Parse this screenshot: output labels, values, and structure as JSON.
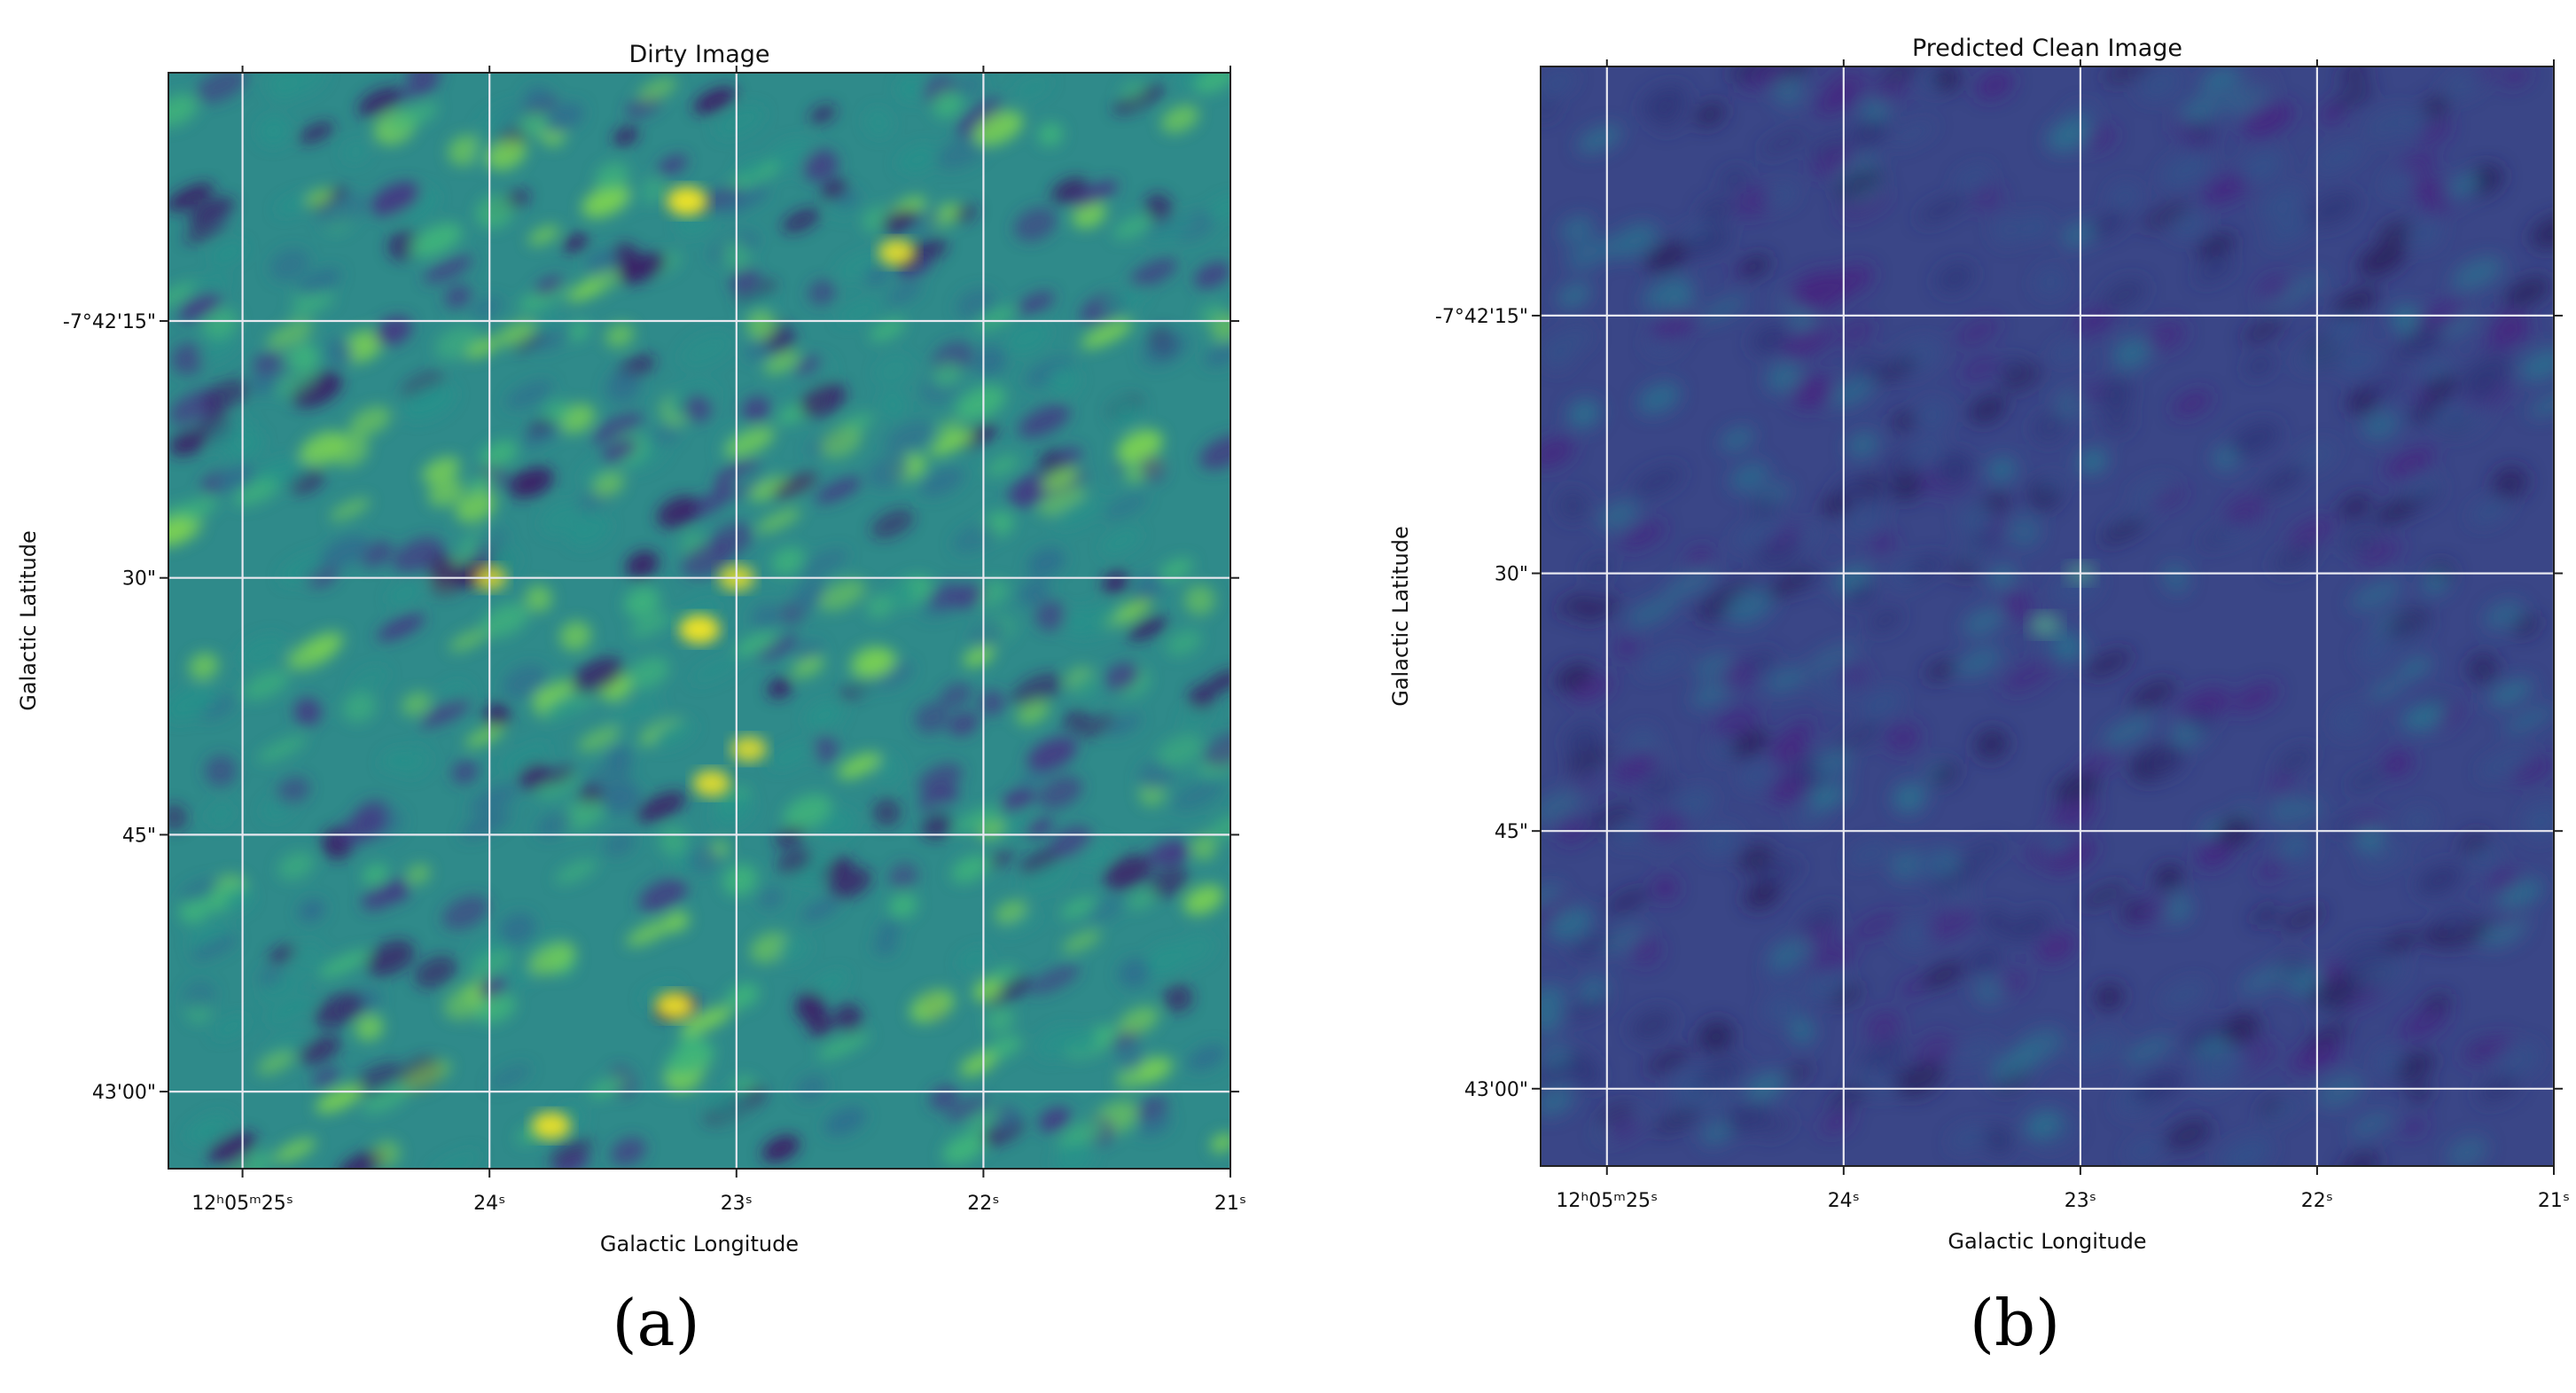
{
  "chart_data": [
    {
      "type": "heatmap",
      "title": "Dirty Image",
      "subfigure_label": "(a)",
      "xlabel": "Galactic Longitude",
      "ylabel": "Galactic Latitude",
      "colormap": "viridis",
      "grid": true,
      "x_ticks": [
        {
          "value_s": 25,
          "label": "12ʰ05ᵐ25ˢ"
        },
        {
          "value_s": 24,
          "label": "24ˢ"
        },
        {
          "value_s": 23,
          "label": "23ˢ"
        },
        {
          "value_s": 22,
          "label": "22ˢ"
        },
        {
          "value_s": 21,
          "label": "21ˢ"
        }
      ],
      "y_ticks": [
        {
          "value_arcsec": 15,
          "label": "-7°42'15\""
        },
        {
          "value_arcsec": 30,
          "label": "30\""
        },
        {
          "value_arcsec": 45,
          "label": "45\""
        },
        {
          "value_arcsec": 60,
          "label": "43'00\""
        }
      ],
      "x_range_s": [
        25.3,
        21.0
      ],
      "y_range_arcsec": [
        0.5,
        64.5
      ],
      "bright_features": [
        {
          "x_s": 23.2,
          "y_arcsec": 8,
          "intensity": 0.95
        },
        {
          "x_s": 22.35,
          "y_arcsec": 11,
          "intensity": 0.85
        },
        {
          "x_s": 23.0,
          "y_arcsec": 30,
          "intensity": 0.8
        },
        {
          "x_s": 24.0,
          "y_arcsec": 30,
          "intensity": 0.75
        },
        {
          "x_s": 23.15,
          "y_arcsec": 33,
          "intensity": 0.95
        },
        {
          "x_s": 22.95,
          "y_arcsec": 40,
          "intensity": 0.8
        },
        {
          "x_s": 23.1,
          "y_arcsec": 42,
          "intensity": 0.85
        },
        {
          "x_s": 23.25,
          "y_arcsec": 55,
          "intensity": 0.9
        },
        {
          "x_s": 23.75,
          "y_arcsec": 62,
          "intensity": 0.9
        }
      ]
    },
    {
      "type": "heatmap",
      "title": "Predicted Clean Image",
      "subfigure_label": "(b)",
      "xlabel": "Galactic Longitude",
      "ylabel": "Galactic Latitude",
      "colormap": "viridis",
      "grid": true,
      "x_ticks": [
        {
          "value_s": 25,
          "label": "12ʰ05ᵐ25ˢ"
        },
        {
          "value_s": 24,
          "label": "24ˢ"
        },
        {
          "value_s": 23,
          "label": "23ˢ"
        },
        {
          "value_s": 22,
          "label": "22ˢ"
        },
        {
          "value_s": 21,
          "label": "21ˢ"
        }
      ],
      "y_ticks": [
        {
          "value_arcsec": 15,
          "label": "-7°42'15\""
        },
        {
          "value_arcsec": 30,
          "label": "30\""
        },
        {
          "value_arcsec": 45,
          "label": "45\""
        },
        {
          "value_arcsec": 60,
          "label": "43'00\""
        }
      ],
      "x_range_s": [
        25.28,
        21.0
      ],
      "y_range_arcsec": [
        0.5,
        64.5
      ],
      "bright_features": [
        {
          "x_s": 23.0,
          "y_arcsec": 30,
          "intensity": 0.55
        },
        {
          "x_s": 23.15,
          "y_arcsec": 33,
          "intensity": 0.65
        }
      ]
    }
  ]
}
